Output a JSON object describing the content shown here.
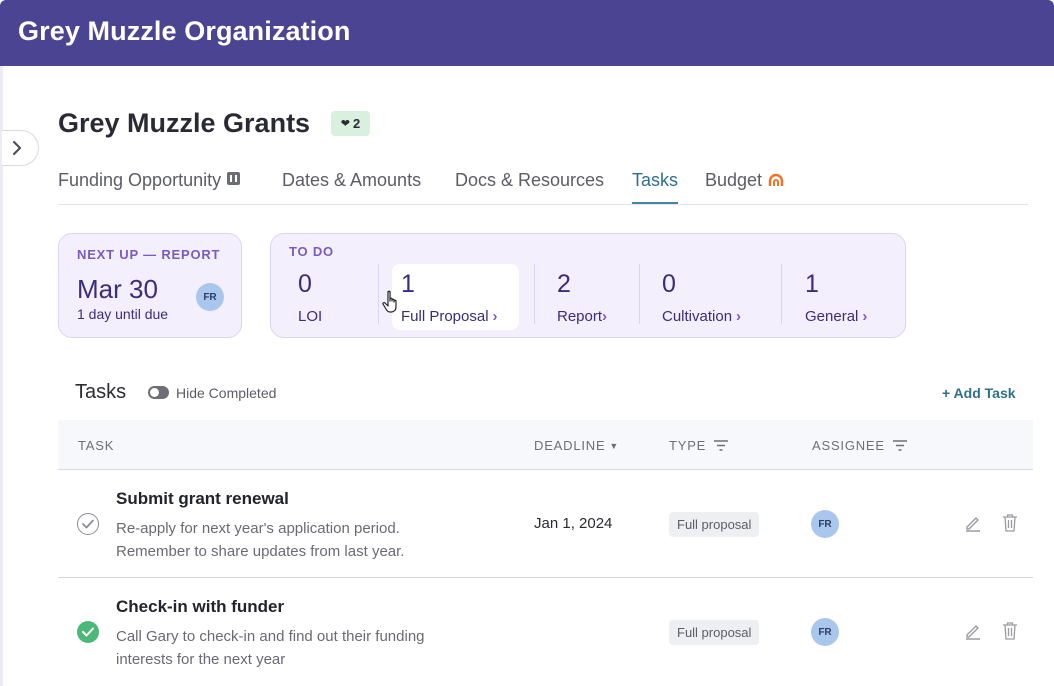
{
  "org": {
    "title": "Grey Muzzle Organization"
  },
  "page": {
    "title": "Grey Muzzle Grants",
    "like_count": "2"
  },
  "tabs": [
    {
      "label": "Funding Opportunity",
      "icon": "grid-icon"
    },
    {
      "label": "Dates & Amounts"
    },
    {
      "label": "Docs & Resources"
    },
    {
      "label": "Tasks",
      "active": true
    },
    {
      "label": "Budget",
      "icon": "budget-arc-icon"
    }
  ],
  "next_up": {
    "label": "NEXT UP — REPORT",
    "date": "Mar 30",
    "due": "1 day until due",
    "avatar": "FR"
  },
  "todo": {
    "label": "TO DO",
    "items": [
      {
        "count": "0",
        "name": "LOI"
      },
      {
        "count": "1",
        "name": "Full Proposal"
      },
      {
        "count": "2",
        "name": "Report"
      },
      {
        "count": "0",
        "name": "Cultivation"
      },
      {
        "count": "1",
        "name": "General"
      }
    ]
  },
  "tasks_section": {
    "heading": "Tasks",
    "toggle_label": "Hide Completed",
    "add_label": "+ Add Task"
  },
  "table": {
    "columns": {
      "task": "TASK",
      "deadline": "DEADLINE",
      "type": "TYPE",
      "assignee": "ASSIGNEE"
    },
    "rows": [
      {
        "title": "Submit grant renewal",
        "desc_line1": "Re-apply for next year's application period.",
        "desc_line2": "Remember to share updates from last year.",
        "deadline": "Jan 1, 2024",
        "type": "Full proposal",
        "assignee": "FR",
        "completed": false
      },
      {
        "title": "Check-in with funder",
        "desc_line1": "Call Gary to check-in and find out their funding",
        "desc_line2": "interests for the next year",
        "deadline": "",
        "type": "Full proposal",
        "assignee": "FR",
        "completed": true
      }
    ]
  },
  "colors": {
    "header_bg": "#4a4493",
    "accent_purple": "#7b5bbf",
    "tab_active": "#2f6f8f",
    "card_bg": "#f3effc",
    "done_green": "#4cb878",
    "budget_icon": "#e8762c"
  }
}
